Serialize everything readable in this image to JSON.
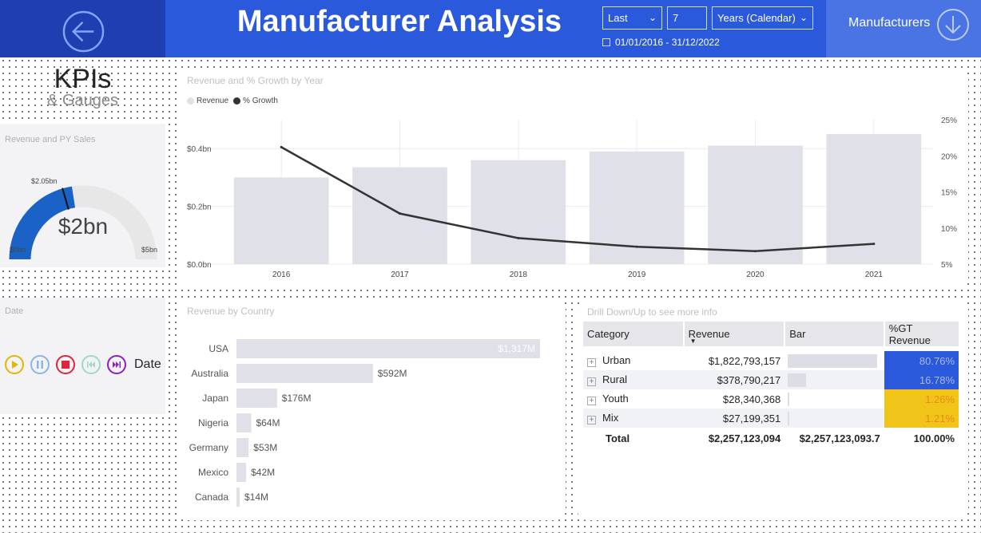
{
  "header": {
    "title": "Manufacturer Analysis",
    "filter": {
      "mode": "Last",
      "count": "7",
      "unit": "Years (Calendar)",
      "date_range": "01/01/2016 - 31/12/2022"
    },
    "manufacturers_label": "Manufacturers",
    "colors": {
      "header_bg": "#2b59dc",
      "back_bg": "#1f3fb0",
      "nav_bg": "#4a73e4"
    }
  },
  "left": {
    "kpi_title": "KPIs",
    "kpi_subtitle": "& Gauges",
    "gauge": {
      "label": "Revenue and PY Sales",
      "value_label": "$2bn",
      "target_label": "$2.05bn",
      "min_label": "$0bn",
      "max_label": "$5bn",
      "value": 2.257,
      "target": 2.05,
      "min": 0,
      "max": 5,
      "fill_color": "#1a62c5",
      "track_color": "#e7e7e7"
    },
    "date_slicer": {
      "label": "Date",
      "play_label": "Date"
    }
  },
  "revenue_chart": {
    "title": "Revenue and % Growth by Year",
    "legend": [
      "Revenue",
      "% Growth"
    ]
  },
  "country_chart": {
    "title": "Revenue by Country"
  },
  "drill": {
    "title": "Drill Down/Up to see more info",
    "headers": [
      "Category",
      "Revenue",
      "Bar",
      "%GT Revenue"
    ],
    "rows": [
      {
        "category": "Urban",
        "revenue": "$1,822,793,157",
        "bar": 0.8076,
        "pct": "80.76%",
        "color": "#2b59dc",
        "text_color": "#aab8ef"
      },
      {
        "category": "Rural",
        "revenue": "$378,790,217",
        "bar": 0.1678,
        "pct": "16.78%",
        "color": "#2b59dc",
        "text_color": "#aab8ef"
      },
      {
        "category": "Youth",
        "revenue": "$28,340,368",
        "bar": 0.0126,
        "pct": "1.26%",
        "color": "#f0c419",
        "text_color": "#e88a1a"
      },
      {
        "category": "Mix",
        "revenue": "$27,199,351",
        "bar": 0.0121,
        "pct": "1.21%",
        "color": "#f0c419",
        "text_color": "#e88a1a"
      }
    ],
    "total": {
      "label": "Total",
      "revenue": "$2,257,123,094",
      "bar": "$2,257,123,093.7",
      "pct": "100.00%"
    }
  },
  "chart_data": [
    {
      "type": "bar",
      "title": "Revenue and % Growth by Year",
      "categories": [
        "2016",
        "2017",
        "2018",
        "2019",
        "2020",
        "2021"
      ],
      "series": [
        {
          "name": "Revenue",
          "values": [
            0.3,
            0.335,
            0.36,
            0.39,
            0.41,
            0.45
          ],
          "axis": "left",
          "color": "#dfe0e8"
        },
        {
          "name": "% Growth",
          "type": "line",
          "values": [
            21.2,
            12.0,
            8.6,
            7.4,
            6.8,
            7.8
          ],
          "axis": "right",
          "color": "#333333"
        }
      ],
      "y_ticks_left": [
        "$0.0bn",
        "$0.2bn",
        "$0.4bn"
      ],
      "ylim_left": [
        0,
        0.5
      ],
      "y_ticks_right": [
        "5%",
        "10%",
        "15%",
        "20%",
        "25%"
      ],
      "ylim_right": [
        5,
        25
      ],
      "grid": true,
      "legend": "top-left"
    },
    {
      "type": "bar",
      "orientation": "horizontal",
      "title": "Revenue by Country",
      "categories": [
        "USA",
        "Australia",
        "Japan",
        "Nigeria",
        "Germany",
        "Mexico",
        "Canada"
      ],
      "values": [
        1317,
        592,
        176,
        64,
        53,
        42,
        14
      ],
      "labels": [
        "$1,317M",
        "$592M",
        "$176M",
        "$64M",
        "$53M",
        "$42M",
        "$14M"
      ],
      "unit": "$M",
      "color": "#dfe0e8"
    }
  ]
}
